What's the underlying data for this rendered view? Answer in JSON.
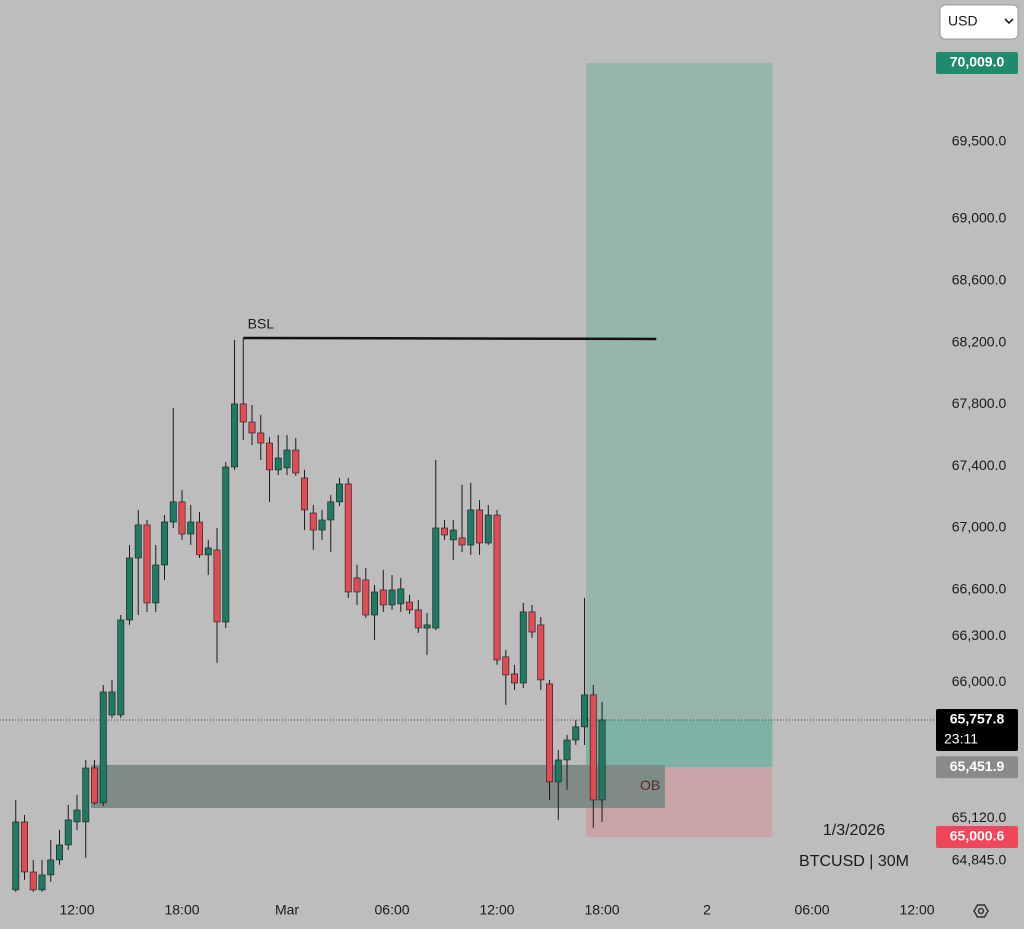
{
  "currency_selector": "USD",
  "chart_data": {
    "type": "candlestick",
    "date_label": "1/3/2026",
    "symbol_label": "BTCUSD | 30M",
    "up_color": "#1f7a63",
    "down_color": "#e04b56",
    "x": [
      0,
      1,
      2,
      3,
      4,
      5,
      6,
      7,
      8,
      9,
      10,
      11,
      12,
      13,
      14,
      15,
      16,
      17,
      18,
      19,
      20,
      21,
      22,
      23,
      24,
      25,
      26,
      27,
      28,
      29,
      30,
      31,
      32,
      33,
      34,
      35,
      36,
      37,
      38,
      39,
      40,
      41,
      42,
      43,
      44,
      45,
      46,
      47,
      48,
      49,
      50,
      51,
      52,
      53,
      54,
      55,
      56,
      57,
      58,
      59,
      60,
      61,
      62,
      63,
      64,
      65,
      66,
      67
    ],
    "open": [
      64658,
      65098,
      64774,
      64658,
      64755,
      64852,
      64949,
      65098,
      65098,
      65447,
      65221,
      65790,
      65790,
      66405,
      66806,
      67020,
      66515,
      66761,
      67039,
      67169,
      66961,
      67039,
      66826,
      66858,
      66392,
      67395,
      67803,
      67686,
      67615,
      67550,
      67376,
      67389,
      67505,
      67324,
      67097,
      66987,
      67052,
      67169,
      67285,
      66677,
      66664,
      66437,
      66599,
      66502,
      66509,
      66521,
      66470,
      66353,
      66353,
      67000,
      66923,
      66936,
      66890,
      67117,
      66903,
      67084,
      66166,
      66056,
      65997,
      66457,
      66373,
      65991,
      65357,
      65499,
      65628,
      65713,
      65920,
      65240
    ],
    "high": [
      65240,
      65143,
      64852,
      64852,
      64981,
      65046,
      65208,
      65273,
      65499,
      65499,
      65984,
      66017,
      66437,
      66890,
      67117,
      67052,
      66890,
      67084,
      67777,
      67246,
      67149,
      67104,
      66923,
      67000,
      67427,
      68217,
      68230,
      67796,
      67732,
      67589,
      67602,
      67602,
      67583,
      67376,
      67149,
      67117,
      67214,
      67324,
      67324,
      66761,
      66741,
      66631,
      66729,
      66696,
      66677,
      66567,
      66534,
      66450,
      67440,
      67052,
      67052,
      67279,
      67292,
      67181,
      67149,
      67117,
      66211,
      66114,
      66515,
      66502,
      66424,
      66017,
      65564,
      65661,
      65758,
      66547,
      65984,
      65874
    ],
    "low": [
      64645,
      64723,
      64645,
      64645,
      64710,
      64820,
      64917,
      65046,
      64865,
      65208,
      65201,
      65771,
      65771,
      66373,
      66437,
      66457,
      66457,
      66664,
      67000,
      66923,
      66890,
      66806,
      66696,
      66127,
      66353,
      67376,
      67570,
      67537,
      67440,
      67169,
      67343,
      67343,
      67337,
      66987,
      66858,
      66923,
      66845,
      67143,
      66547,
      66502,
      66418,
      66276,
      66457,
      66470,
      66457,
      66444,
      66321,
      66179,
      66340,
      66923,
      66793,
      66845,
      66826,
      66826,
      66890,
      66114,
      65855,
      65952,
      65965,
      66289,
      65952,
      65240,
      65111,
      65305,
      65596,
      65596,
      65059,
      65098
    ],
    "close": [
      65098,
      64774,
      64658,
      64755,
      64852,
      64949,
      65111,
      65175,
      65447,
      65221,
      65939,
      65939,
      66405,
      66806,
      67020,
      66515,
      66761,
      67039,
      67169,
      66961,
      67039,
      66826,
      66871,
      66392,
      67395,
      67803,
      67686,
      67615,
      67550,
      67376,
      67453,
      67505,
      67356,
      67117,
      66987,
      67052,
      67169,
      67285,
      66586,
      66586,
      66437,
      66586,
      66502,
      66599,
      66606,
      66470,
      66353,
      66373,
      67000,
      66955,
      66987,
      66890,
      67117,
      66903,
      67084,
      66146,
      66049,
      65997,
      66457,
      66327,
      66017,
      65357,
      65499,
      65628,
      65713,
      65920,
      65240,
      65757.8
    ],
    "xlim": [
      -1.8,
      105.05
    ],
    "xticks": [
      {
        "value": 7,
        "label": "12:00"
      },
      {
        "value": 19,
        "label": "18:00"
      },
      {
        "value": 31,
        "label": "Mar"
      },
      {
        "value": 43,
        "label": "06:00"
      },
      {
        "value": 55,
        "label": "12:00"
      },
      {
        "value": 67,
        "label": "18:00"
      },
      {
        "value": 79,
        "label": "2"
      },
      {
        "value": 91,
        "label": "06:00"
      },
      {
        "value": 103,
        "label": "12:00"
      }
    ],
    "ylim": [
      64625,
      70417
    ],
    "yticks": [
      {
        "value": 69500,
        "label": "69,500.0"
      },
      {
        "value": 69000,
        "label": "69,000.0"
      },
      {
        "value": 68600,
        "label": "68,600.0"
      },
      {
        "value": 68200,
        "label": "68,200.0"
      },
      {
        "value": 67800,
        "label": "67,800.0"
      },
      {
        "value": 67400,
        "label": "67,400.0"
      },
      {
        "value": 67000,
        "label": "67,000.0"
      },
      {
        "value": 66600,
        "label": "66,600.0"
      },
      {
        "value": 66300,
        "label": "66,300.0"
      },
      {
        "value": 66000,
        "label": "66,000.0"
      },
      {
        "value": 65120,
        "label": "65,120.0"
      },
      {
        "value": 64845,
        "label": "64,845.0"
      }
    ],
    "current_price": {
      "value": 65757.8,
      "label": "65,757.8",
      "countdown": "23:11"
    },
    "liquidity_level": {
      "label": "BSL",
      "value": 68230
    },
    "order_block": {
      "label": "OB",
      "top": 65467,
      "bottom": 65188
    },
    "position": {
      "target": {
        "value": 70009.0,
        "label": "70,009.0"
      },
      "entry": {
        "value": 65451.9,
        "label": "65,451.9"
      },
      "stop": {
        "value": 65000.6,
        "label": "65,000.6"
      }
    }
  }
}
